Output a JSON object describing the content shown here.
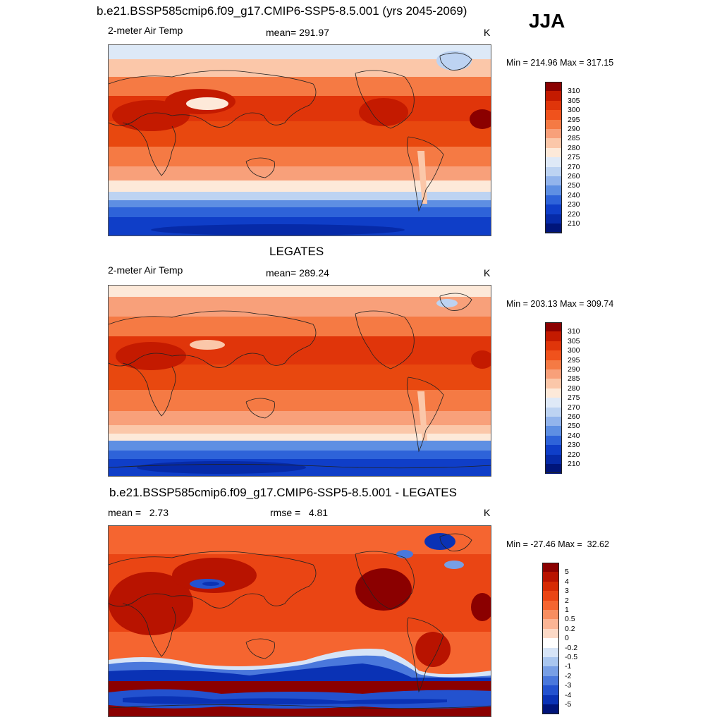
{
  "header": {
    "title": "b.e21.BSSP585cmip6.f09_g17.CMIP6-SSP5-8.5.001 (yrs 2045-2069)",
    "season": "JJA"
  },
  "panels": [
    {
      "id": "model",
      "title": "",
      "left_label": "2-meter Air Temp",
      "center_label": "mean= 291.97",
      "right_label": "K",
      "minmax": "Min = 214.96 Max = 317.15",
      "colorbar": "abs"
    },
    {
      "id": "obs",
      "title": "LEGATES",
      "left_label": "2-meter Air Temp",
      "center_label": "mean= 289.24",
      "right_label": "K",
      "minmax": "Min = 203.13 Max = 309.74",
      "colorbar": "abs"
    },
    {
      "id": "diff",
      "title": "b.e21.BSSP585cmip6.f09_g17.CMIP6-SSP5-8.5.001 - LEGATES",
      "left_label": "mean =   2.73",
      "center_label": "rmse =   4.81",
      "right_label": "K",
      "minmax": "Min = -27.46 Max =  32.62",
      "colorbar": "diff"
    }
  ],
  "colorbars": {
    "abs": {
      "labels": [
        "310",
        "305",
        "300",
        "295",
        "290",
        "285",
        "280",
        "275",
        "270",
        "260",
        "250",
        "240",
        "230",
        "220",
        "210"
      ],
      "colors": [
        "#8b0000",
        "#c41a00",
        "#e0350a",
        "#f0521c",
        "#f57a44",
        "#f8a07a",
        "#fbc7a9",
        "#fde9d9",
        "#dfe9f7",
        "#bdd3f2",
        "#92b4ec",
        "#5e8fe3",
        "#2e63d9",
        "#0f3ec8",
        "#062aa8",
        "#00157a"
      ]
    },
    "diff": {
      "labels": [
        "5",
        "4",
        "3",
        "2",
        "1",
        "0.5",
        "0.2",
        "0",
        "-0.2",
        "-0.5",
        "-1",
        "-2",
        "-3",
        "-4",
        "-5"
      ],
      "colors": [
        "#8b0000",
        "#b81300",
        "#d62b04",
        "#ea4514",
        "#f56530",
        "#f88e60",
        "#fbb595",
        "#fcd9c6",
        "#ffffff",
        "#d6e4f7",
        "#a9c6ef",
        "#789fe5",
        "#4a78dc",
        "#2352cf",
        "#0a32b5",
        "#00147a"
      ]
    }
  }
}
